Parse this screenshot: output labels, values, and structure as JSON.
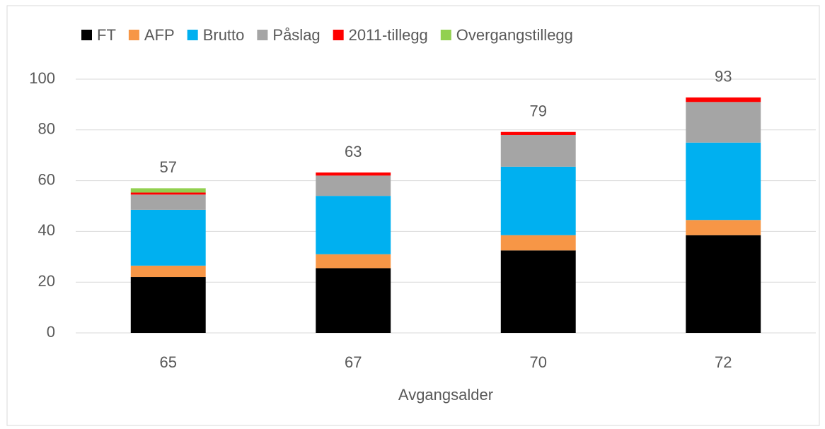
{
  "chart_data": {
    "type": "stacked_bar",
    "x_label": "Avgangsalder",
    "categories": [
      "65",
      "67",
      "70",
      "72"
    ],
    "series": [
      {
        "name": "FT",
        "color": "#000000",
        "values": [
          22,
          25.5,
          32.5,
          38.5
        ]
      },
      {
        "name": "AFP",
        "color": "#f79646",
        "values": [
          4.5,
          5.5,
          6,
          6
        ]
      },
      {
        "name": "Brutto",
        "color": "#00b0f0",
        "values": [
          22,
          23,
          27,
          30.5
        ]
      },
      {
        "name": "Påslag",
        "color": "#a5a5a5",
        "values": [
          6,
          8,
          12.5,
          16
        ]
      },
      {
        "name": "2011-tillegg",
        "color": "#ff0000",
        "values": [
          0.8,
          1.2,
          1.2,
          1.8
        ]
      },
      {
        "name": "Overgangstillegg",
        "color": "#92d050",
        "values": [
          1.7,
          0,
          0,
          0
        ]
      }
    ],
    "totals": [
      57,
      63,
      79,
      93
    ],
    "ylim": [
      0,
      100
    ],
    "yticks": [
      0,
      20,
      40,
      60,
      80,
      100
    ],
    "grid": true,
    "legend": "top"
  }
}
